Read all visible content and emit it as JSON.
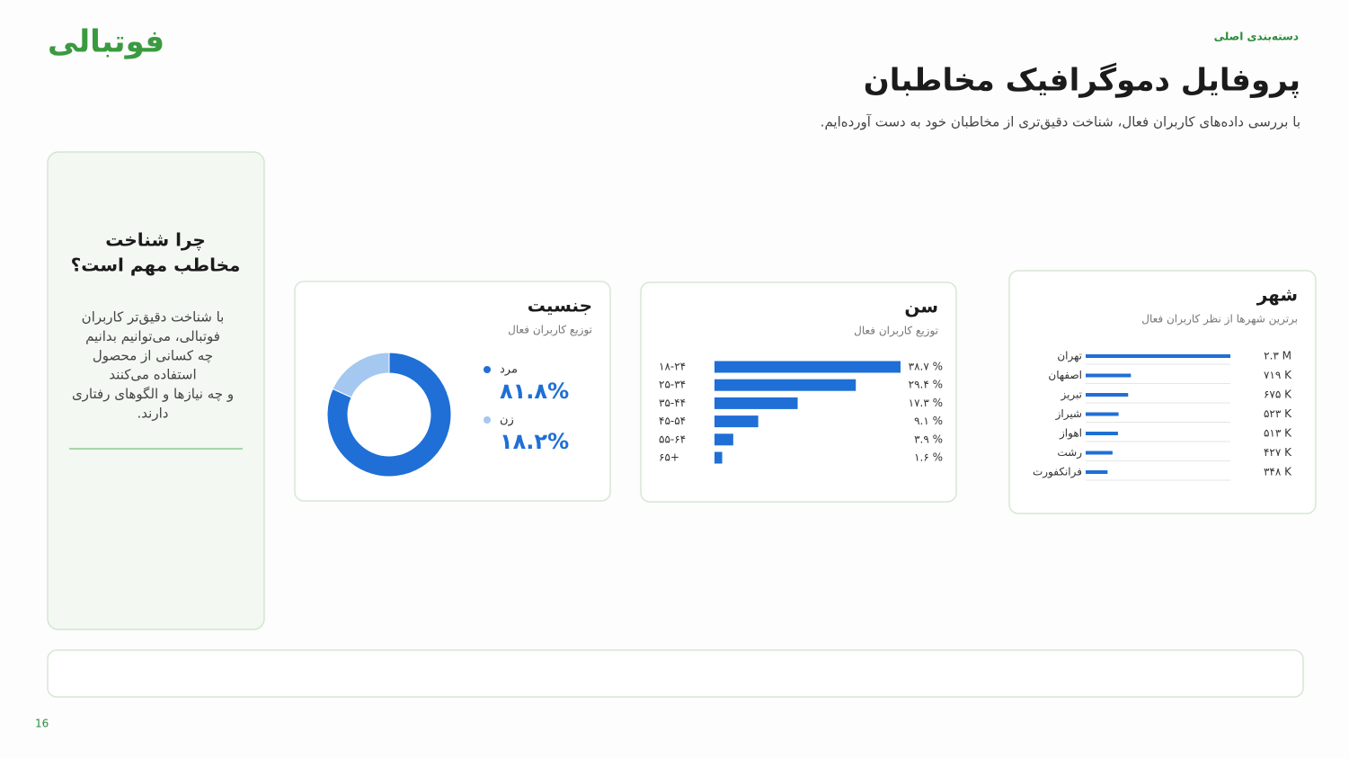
{
  "logo": "فوتبالی",
  "header": {
    "category": "دسته‌بندی اصلی",
    "title": "پروفایل دموگرافیک مخاطبان",
    "subtitle": "با بررسی داده‌های کاربران فعال، شناخت دقیق‌تری از مخاطبان خود به دست آورده‌ایم."
  },
  "sidebar": {
    "title_lines": [
      "چرا شناخت",
      "مخاطب مهم است؟"
    ],
    "body_lines": [
      "با شناخت دقیق‌تر کاربران",
      "فوتبالی، می‌توانیم بدانیم",
      "چه کسانی از محصول",
      "استفاده می‌کنند",
      "و چه نیازها و الگوهای رفتاری",
      "دارند."
    ]
  },
  "page_number": "16",
  "chart_data": [
    {
      "type": "donut",
      "title": "جنسیت",
      "subtitle": "توزیع کاربران فعال",
      "categories": [
        "مرد",
        "زن"
      ],
      "values": [
        81.8,
        18.2
      ],
      "value_labels": [
        "۸۱.۸%",
        "۱۸.۲%"
      ],
      "colors": [
        "#1f6fd6",
        "#a4c8f0"
      ]
    },
    {
      "type": "bar",
      "title": "سن",
      "subtitle": "توزیع کاربران فعال",
      "categories": [
        "۱۸-۲۴",
        "۲۵-۳۴",
        "۳۵-۴۴",
        "۴۵-۵۴",
        "۵۵-۶۴",
        "۶۵+"
      ],
      "values": [
        38.7,
        29.4,
        17.3,
        9.1,
        3.9,
        1.6
      ],
      "value_labels": [
        "۳۸.۷ %",
        "۲۹.۴ %",
        "۱۷.۳ %",
        "۹.۱ %",
        "۳.۹ %",
        "۱.۶ %"
      ],
      "color": "#1f6fd6"
    },
    {
      "type": "bar",
      "title": "شهر",
      "subtitle": "برترین شهرها از نظر کاربران فعال",
      "categories": [
        "تهران",
        "اصفهان",
        "تبریز",
        "شیراز",
        "اهواز",
        "رشت",
        "فرانکفورت"
      ],
      "values": [
        2300000,
        719000,
        675000,
        523000,
        513000,
        427000,
        348000
      ],
      "value_labels": [
        "۲.۳ M",
        "۷۱۹ K",
        "۶۷۵ K",
        "۵۲۳ K",
        "۵۱۳ K",
        "۴۲۷ K",
        "۳۴۸ K"
      ],
      "color": "#1f6fd6"
    }
  ]
}
